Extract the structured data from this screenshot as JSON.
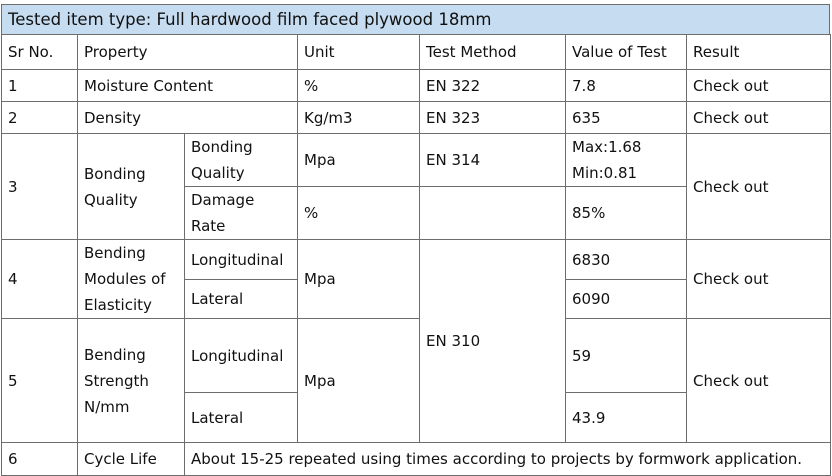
{
  "title": "Tested item type: Full hardwood film faced plywood 18mm",
  "headers": {
    "sr": "Sr No.",
    "property": "Property",
    "unit": "Unit",
    "method": "Test Method",
    "value": "Value of Test",
    "result": "Result"
  },
  "rows": {
    "moisture": {
      "sr": "1",
      "property": "Moisture Content",
      "unit": "%",
      "method": "EN 322",
      "value": "7.8",
      "result": "Check out"
    },
    "density": {
      "sr": "2",
      "property": "Density",
      "unit": "Kg/m3",
      "method": "EN 323",
      "value": "635",
      "result": "Check out"
    },
    "bonding": {
      "sr": "3",
      "property_line1": "Bonding",
      "property_line2": "Quality",
      "sub1_line1": "Bonding",
      "sub1_line2": "Quality",
      "sub1_unit": "Mpa",
      "sub1_method": "EN 314",
      "sub1_value_line1": "Max:1.68",
      "sub1_value_line2": "Min:0.81",
      "sub2_line1": "Damage",
      "sub2_line2": "Rate",
      "sub2_unit": "%",
      "sub2_value": "85%",
      "result": "Check out"
    },
    "modulus": {
      "sr": "4",
      "property_line1": "Bending",
      "property_line2": "Modules of",
      "property_line3": "Elasticity",
      "sub1": "Longitudinal",
      "sub2": "Lateral",
      "unit": "Mpa",
      "value1": "6830",
      "value2": "6090",
      "result": "Check out"
    },
    "strength": {
      "sr": "5",
      "property_line1": "Bending",
      "property_line2": "Strength",
      "property_line3": "N/mm",
      "sub1": "Longitudinal",
      "sub2": "Lateral",
      "unit": "Mpa",
      "value1": "59",
      "value2": "43.9",
      "result": "Check out"
    },
    "cycle": {
      "sr": "6",
      "property": "Cycle Life",
      "note": "About 15-25 repeated using times according to projects by formwork application."
    }
  },
  "shared_method_bending": "EN 310"
}
